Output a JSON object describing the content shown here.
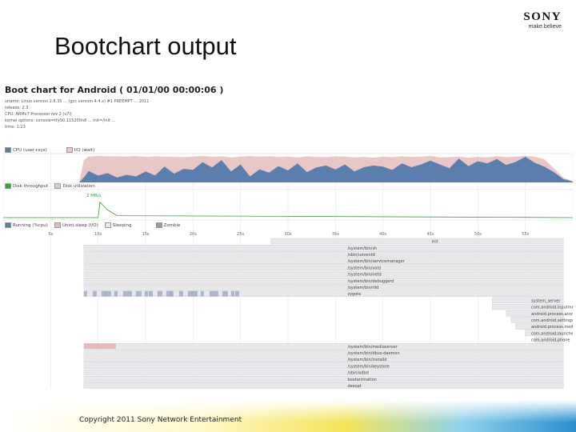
{
  "slide": {
    "title": "Bootchart output",
    "brand": {
      "name": "SONY",
      "tagline": "make.believe"
    },
    "copyright": "Copyright 2011 Sony Network Entertainment"
  },
  "bootchart": {
    "heading": "Boot chart for Android ( 01/01/00 00:00:06 )",
    "info_lines": [
      "uname: Linux version 2.6.35 ... (gcc version 4.4.x) #1 PREEMPT ... 2011",
      "release: 2.3",
      "CPU: ARMv7 Processor rev 2 (v7l)",
      "kernel options: console=ttyS0,115200n8 ... init=/init ...",
      "time: 1:23"
    ],
    "cpu_legend": [
      "CPU (user+sys)",
      "I/O (wait)"
    ],
    "disk_legend": [
      "Disk throughput",
      "Disk utilization"
    ],
    "disk_peak_label": "2 MB/s",
    "process_legend": [
      "Running (%cpu)",
      "Unint.sleep (I/O)",
      "Sleeping",
      "Zombie"
    ],
    "colors": {
      "cpu": "#5b7fad",
      "io": "#e9c7c7",
      "disk": "#3c9e3c",
      "process_bar": "#e8e8ea",
      "sleep_block": "#9aa6c0",
      "io_block": "#e7b9b9"
    },
    "processes": [
      {
        "name": "init",
        "start_sec": 28.2,
        "end_sec": 59
      },
      {
        "name": "/system/bin/sh",
        "start_sec": 8.5,
        "end_sec": 59
      },
      {
        "name": "/sbin/ueventd",
        "start_sec": 8.5,
        "end_sec": 59
      },
      {
        "name": "/system/bin/servicemanager",
        "start_sec": 8.5,
        "end_sec": 59
      },
      {
        "name": "/system/bin/vold",
        "start_sec": 8.5,
        "end_sec": 59
      },
      {
        "name": "/system/bin/netd",
        "start_sec": 8.5,
        "end_sec": 59
      },
      {
        "name": "/system/bin/debuggerd",
        "start_sec": 8.5,
        "end_sec": 59
      },
      {
        "name": "/system/bin/rild",
        "start_sec": 8.5,
        "end_sec": 59
      },
      {
        "name": "zygote",
        "start_sec": 8.5,
        "end_sec": 59
      },
      {
        "name": "system_server",
        "start_sec": 51.5,
        "end_sec": 59
      },
      {
        "name": "com.android.inputmethod.latin",
        "start_sec": 51.5,
        "end_sec": 59
      },
      {
        "name": "android.process.acore",
        "start_sec": 53,
        "end_sec": 59
      },
      {
        "name": "com.android.settings",
        "start_sec": 53.5,
        "end_sec": 59
      },
      {
        "name": "android.process.media",
        "start_sec": 54,
        "end_sec": 59
      },
      {
        "name": "com.android.launcher",
        "start_sec": 55,
        "end_sec": 59
      },
      {
        "name": "com.android.phone",
        "start_sec": 56,
        "end_sec": 59
      },
      {
        "name": "/system/bin/mediaserver",
        "start_sec": 8.5,
        "end_sec": 59
      },
      {
        "name": "/system/bin/dbus-daemon",
        "start_sec": 8.5,
        "end_sec": 59
      },
      {
        "name": "/system/bin/installd",
        "start_sec": 8.5,
        "end_sec": 59
      },
      {
        "name": "/system/bin/keystore",
        "start_sec": 8.5,
        "end_sec": 59
      },
      {
        "name": "/sbin/adbd",
        "start_sec": 8.5,
        "end_sec": 59
      },
      {
        "name": "bootanimation",
        "start_sec": 8.5,
        "end_sec": 59
      },
      {
        "name": "dexopt",
        "start_sec": 8.5,
        "end_sec": 59
      }
    ]
  },
  "chart_data": {
    "type": "area",
    "x_range_sec": [
      0,
      60
    ],
    "tick_values": [
      5,
      10,
      15,
      20,
      25,
      30,
      35,
      40,
      45,
      50,
      55
    ],
    "tick_labels": [
      "5s",
      "10s",
      "15s",
      "20s",
      "25s",
      "30s",
      "35s",
      "40s",
      "45s",
      "50s",
      "55s"
    ],
    "cpu_timeline": {
      "x_sec": [
        0,
        8,
        8.5,
        9,
        10,
        11,
        12,
        13,
        14,
        15,
        16,
        17,
        18,
        19,
        20,
        21,
        22,
        23,
        24,
        25,
        26,
        27,
        28,
        29,
        30,
        31,
        32,
        33,
        34,
        35,
        36,
        37,
        38,
        39,
        40,
        41,
        42,
        43,
        44,
        45,
        46,
        47,
        48,
        49,
        50,
        51,
        52,
        53,
        54,
        55,
        56,
        57,
        58,
        59,
        60
      ],
      "cpu_pct": [
        0,
        0,
        18,
        42,
        25,
        34,
        18,
        28,
        22,
        40,
        26,
        58,
        32,
        50,
        46,
        74,
        55,
        82,
        40,
        66,
        22,
        48,
        36,
        60,
        44,
        70,
        38,
        55,
        62,
        48,
        66,
        40,
        56,
        62,
        58,
        46,
        70,
        56,
        66,
        80,
        66,
        52,
        88,
        60,
        78,
        70,
        86,
        64,
        76,
        94,
        72,
        58,
        38,
        12,
        3
      ],
      "io_pct": [
        0,
        0,
        82,
        95,
        97,
        96,
        96,
        95,
        97,
        94,
        96,
        95,
        94,
        93,
        95,
        97,
        94,
        96,
        92,
        95,
        97,
        95,
        96,
        94,
        95,
        92,
        96,
        94,
        93,
        96,
        95,
        92,
        94,
        91,
        95,
        93,
        96,
        94,
        95,
        97,
        92,
        93,
        95,
        91,
        94,
        92,
        96,
        93,
        95,
        97,
        94,
        85,
        52,
        18,
        4
      ]
    },
    "disk_throughput_mb_s": {
      "x_sec": [
        0,
        10,
        10.2,
        11,
        12,
        30,
        45,
        55,
        60
      ],
      "values": [
        0,
        0,
        1.2,
        0.6,
        0.15,
        0.1,
        0.05,
        0.02,
        0
      ]
    }
  }
}
